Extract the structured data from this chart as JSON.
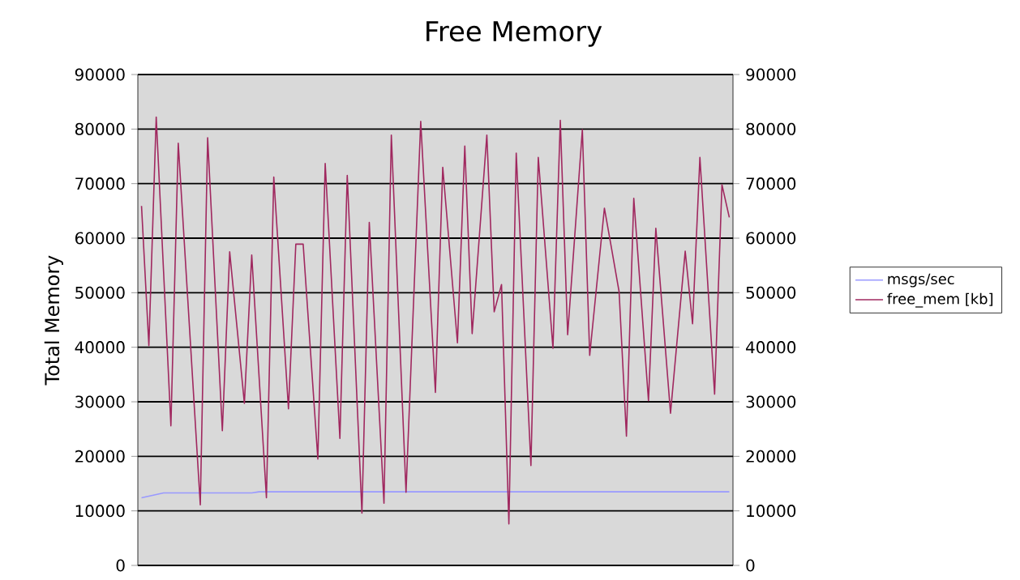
{
  "chart_data": {
    "type": "line",
    "title": "Free Memory",
    "ylabel": "Total Memory",
    "categories": [
      null,
      null,
      null,
      null,
      null,
      null,
      null,
      null,
      null,
      null,
      null,
      null,
      null,
      null,
      null,
      null,
      null,
      null,
      null,
      null,
      null,
      null,
      null,
      null,
      null,
      null,
      null,
      null,
      null,
      null,
      null,
      null,
      null,
      null,
      null,
      null,
      null,
      null,
      null,
      null,
      null,
      null,
      null,
      null,
      null,
      null,
      null,
      null,
      null,
      null,
      null,
      null,
      null,
      null,
      null,
      null,
      null,
      null,
      null,
      null,
      null,
      null,
      null,
      null,
      null,
      null,
      null,
      null,
      null,
      null,
      null,
      null,
      null,
      null,
      null,
      null,
      null,
      null,
      null,
      null,
      null
    ],
    "series": [
      {
        "name": "msgs/sec",
        "color": "#9999ff",
        "values": [
          12400,
          12700,
          13000,
          13300,
          13300,
          13300,
          13300,
          13300,
          13300,
          13300,
          13300,
          13300,
          13300,
          13300,
          13300,
          13300,
          13500,
          13500,
          13500,
          13500,
          13500,
          13500,
          13500,
          13500,
          13500,
          13500,
          13500,
          13500,
          13500,
          13500,
          13500,
          13500,
          13500,
          13500,
          13500,
          13500,
          13500,
          13500,
          13500,
          13500,
          13500,
          13500,
          13500,
          13500,
          13500,
          13500,
          13500,
          13500,
          13500,
          13500,
          13500,
          13500,
          13500,
          13500,
          13500,
          13500,
          13500,
          13500,
          13500,
          13500,
          13500,
          13500,
          13500,
          13500,
          13500,
          13500,
          13500,
          13500,
          13500,
          13500,
          13500,
          13500,
          13500,
          13500,
          13500,
          13500,
          13500,
          13500,
          13500,
          13500,
          13500
        ]
      },
      {
        "name": "free_mem [kb]",
        "color": "#a0285f",
        "values": [
          65900,
          40300,
          82200,
          53900,
          25600,
          77400,
          55300,
          33200,
          11100,
          78400,
          51500,
          24700,
          57500,
          43600,
          29700,
          56900,
          34600,
          12400,
          71200,
          50000,
          28700,
          58900,
          58900,
          39200,
          19500,
          73700,
          48500,
          23300,
          71500,
          40500,
          9600,
          62900,
          37100,
          11400,
          78900,
          46100,
          13400,
          47400,
          81400,
          56500,
          31700,
          73000,
          56900,
          40800,
          76900,
          42500,
          60700,
          78900,
          46500,
          51500,
          7600,
          75600,
          47000,
          18300,
          74800,
          57300,
          39800,
          81600,
          42300,
          61100,
          79900,
          38500,
          52000,
          65500,
          57900,
          50200,
          23700,
          67300,
          48800,
          30200,
          61800,
          44900,
          27900,
          42800,
          57600,
          44300,
          74800,
          53100,
          31400,
          69800,
          63800
        ]
      }
    ],
    "ylim": [
      0,
      90000
    ],
    "yticks": [
      0,
      10000,
      20000,
      30000,
      40000,
      50000,
      60000,
      70000,
      80000,
      90000
    ],
    "y2lim": [
      0,
      90000
    ],
    "y2ticks": [
      0,
      10000,
      20000,
      30000,
      40000,
      50000,
      60000,
      70000,
      80000,
      90000
    ],
    "grid": "y",
    "legend": "right",
    "tick_labels": "y",
    "marker": "none",
    "line_style": "solid"
  }
}
